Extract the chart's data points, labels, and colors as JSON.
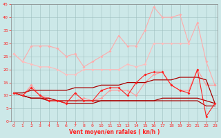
{
  "x": [
    0,
    1,
    2,
    3,
    4,
    5,
    6,
    7,
    8,
    9,
    10,
    11,
    12,
    13,
    14,
    15,
    16,
    17,
    18,
    19,
    20,
    21,
    22,
    23
  ],
  "line_pink1": [
    26,
    23,
    29,
    29,
    29,
    28,
    25,
    26,
    21,
    23,
    25,
    27,
    33,
    29,
    29,
    35,
    44,
    40,
    40,
    41,
    30,
    38,
    23,
    14
  ],
  "line_pink2": [
    26,
    23,
    22,
    21,
    21,
    20,
    18,
    18,
    20,
    20,
    20,
    20,
    20,
    22,
    21,
    22,
    30,
    30,
    30,
    30,
    30,
    null,
    null,
    null
  ],
  "line_pink3": [
    11,
    10,
    14,
    10,
    9,
    8,
    8,
    8,
    9,
    8,
    9,
    12,
    12,
    12,
    10,
    15,
    18,
    19,
    14,
    12,
    12,
    20,
    14,
    14
  ],
  "line_dark1": [
    11,
    11,
    12,
    12,
    12,
    12,
    12,
    13,
    13,
    13,
    14,
    14,
    14,
    15,
    15,
    15,
    16,
    16,
    16,
    17,
    17,
    17,
    16,
    7
  ],
  "line_dark2": [
    11,
    10,
    9,
    9,
    9,
    8,
    8,
    8,
    8,
    8,
    8,
    8,
    8,
    8,
    8,
    8,
    8,
    9,
    9,
    9,
    9,
    9,
    8,
    7
  ],
  "line_red_noisy": [
    11,
    10,
    13,
    10,
    8,
    8,
    7,
    11,
    8,
    8,
    12,
    13,
    13,
    10,
    15,
    18,
    19,
    19,
    14,
    12,
    11,
    20,
    2,
    7
  ],
  "line_dark3": [
    11,
    10,
    9,
    9,
    8,
    8,
    7,
    7,
    7,
    7,
    8,
    8,
    8,
    8,
    8,
    8,
    8,
    8,
    8,
    8,
    8,
    8,
    6,
    6
  ],
  "bg": "#cce8e8",
  "grid": "#9fbfbf",
  "pink1": "#ffaaaa",
  "pink2": "#ffbbbb",
  "pink3": "#ff9999",
  "red": "#ff2020",
  "dark": "#aa0000",
  "xlabel": "Vent moyen/en rafales ( kn/h )",
  "ylim": [
    0,
    45
  ],
  "xlim": [
    -0.3,
    23.3
  ],
  "yticks": [
    0,
    5,
    10,
    15,
    20,
    25,
    30,
    35,
    40,
    45
  ],
  "xticks": [
    0,
    1,
    2,
    3,
    4,
    5,
    6,
    7,
    8,
    9,
    10,
    11,
    12,
    13,
    14,
    15,
    16,
    17,
    18,
    19,
    20,
    21,
    22,
    23
  ]
}
